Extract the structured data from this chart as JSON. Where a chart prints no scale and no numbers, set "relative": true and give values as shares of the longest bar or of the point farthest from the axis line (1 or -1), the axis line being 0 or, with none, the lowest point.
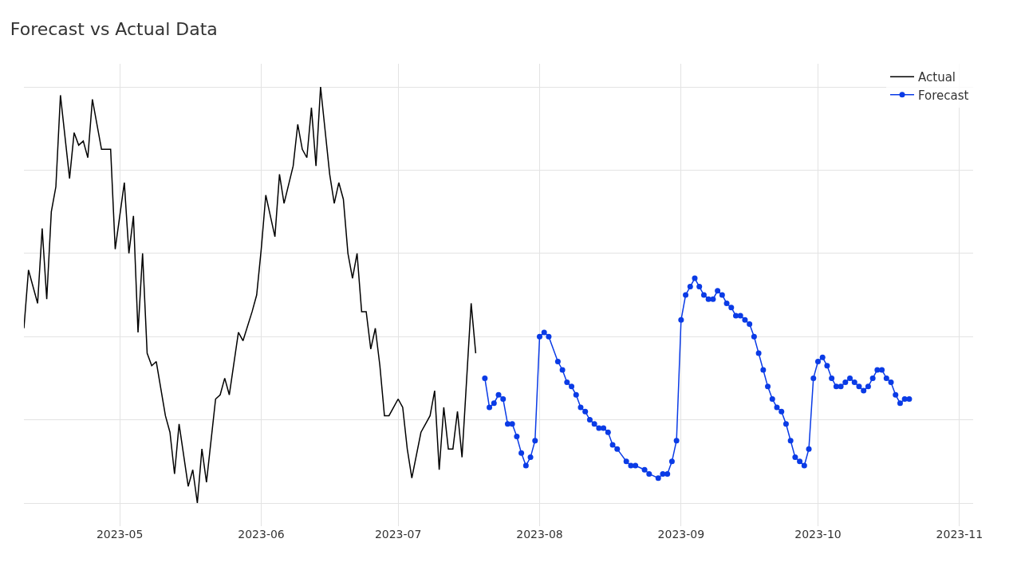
{
  "chart_data": {
    "type": "line",
    "title": "Forecast vs Actual Data",
    "relative": true,
    "grid": true,
    "legend": "top right",
    "xlim": [
      "2023-04-10",
      "2023-11-04"
    ],
    "xticks": [
      "2023-05",
      "2023-06",
      "2023-07",
      "2023-08",
      "2023-09",
      "2023-10",
      "2023-11"
    ],
    "series": [
      {
        "name": "Actual",
        "color": "#000000",
        "marker": "none",
        "x": [
          "2023-04-10",
          "2023-04-11",
          "2023-04-13",
          "2023-04-14",
          "2023-04-15",
          "2023-04-16",
          "2023-04-17",
          "2023-04-18",
          "2023-04-20",
          "2023-04-21",
          "2023-04-22",
          "2023-04-23",
          "2023-04-24",
          "2023-04-25",
          "2023-04-27",
          "2023-04-29",
          "2023-04-30",
          "2023-05-02",
          "2023-05-03",
          "2023-05-04",
          "2023-05-05",
          "2023-05-06",
          "2023-05-07",
          "2023-05-08",
          "2023-05-09",
          "2023-05-11",
          "2023-05-12",
          "2023-05-13",
          "2023-05-14",
          "2023-05-16",
          "2023-05-17",
          "2023-05-18",
          "2023-05-19",
          "2023-05-20",
          "2023-05-22",
          "2023-05-23",
          "2023-05-24",
          "2023-05-25",
          "2023-05-27",
          "2023-05-28",
          "2023-05-30",
          "2023-05-31",
          "2023-06-01",
          "2023-06-02",
          "2023-06-04",
          "2023-06-05",
          "2023-06-06",
          "2023-06-08",
          "2023-06-09",
          "2023-06-10",
          "2023-06-11",
          "2023-06-12",
          "2023-06-13",
          "2023-06-14",
          "2023-06-16",
          "2023-06-17",
          "2023-06-18",
          "2023-06-19",
          "2023-06-20",
          "2023-06-21",
          "2023-06-22",
          "2023-06-23",
          "2023-06-24",
          "2023-06-25",
          "2023-06-26",
          "2023-06-27",
          "2023-06-28",
          "2023-06-29",
          "2023-07-01",
          "2023-07-02",
          "2023-07-03",
          "2023-07-04",
          "2023-07-06",
          "2023-07-07",
          "2023-07-08",
          "2023-07-09",
          "2023-07-10",
          "2023-07-11",
          "2023-07-12",
          "2023-07-13",
          "2023-07-14",
          "2023-07-15",
          "2023-07-17",
          "2023-07-18"
        ],
        "values": [
          0.42,
          0.56,
          0.48,
          0.66,
          0.49,
          0.7,
          0.76,
          0.98,
          0.78,
          0.89,
          0.86,
          0.87,
          0.83,
          0.97,
          0.85,
          0.85,
          0.61,
          0.77,
          0.6,
          0.69,
          0.41,
          0.6,
          0.36,
          0.33,
          0.34,
          0.21,
          0.17,
          0.07,
          0.19,
          0.04,
          0.08,
          0,
          0.13,
          0.05,
          0.25,
          0.26,
          0.3,
          0.26,
          0.41,
          0.39,
          0.46,
          0.5,
          0.61,
          0.74,
          0.64,
          0.79,
          0.72,
          0.81,
          0.91,
          0.85,
          0.83,
          0.95,
          0.81,
          1.0,
          0.79,
          0.72,
          0.77,
          0.73,
          0.6,
          0.54,
          0.6,
          0.46,
          0.46,
          0.37,
          0.42,
          0.33,
          0.21,
          0.21,
          0.25,
          0.23,
          0.13,
          0.06,
          0.17,
          0.19,
          0.21,
          0.27,
          0.08,
          0.23,
          0.13,
          0.13,
          0.22,
          0.11,
          0.48,
          0.36
        ]
      },
      {
        "name": "Forecast",
        "color": "#0a3be6",
        "marker": "circle",
        "x": [
          "2023-07-20",
          "2023-07-21",
          "2023-07-22",
          "2023-07-23",
          "2023-07-24",
          "2023-07-25",
          "2023-07-26",
          "2023-07-27",
          "2023-07-28",
          "2023-07-29",
          "2023-07-30",
          "2023-07-31",
          "2023-08-01",
          "2023-08-02",
          "2023-08-03",
          "2023-08-05",
          "2023-08-06",
          "2023-08-07",
          "2023-08-08",
          "2023-08-09",
          "2023-08-10",
          "2023-08-11",
          "2023-08-12",
          "2023-08-13",
          "2023-08-14",
          "2023-08-15",
          "2023-08-16",
          "2023-08-17",
          "2023-08-18",
          "2023-08-20",
          "2023-08-21",
          "2023-08-22",
          "2023-08-24",
          "2023-08-25",
          "2023-08-27",
          "2023-08-28",
          "2023-08-29",
          "2023-08-30",
          "2023-08-31",
          "2023-09-01",
          "2023-09-02",
          "2023-09-03",
          "2023-09-04",
          "2023-09-05",
          "2023-09-06",
          "2023-09-07",
          "2023-09-08",
          "2023-09-09",
          "2023-09-10",
          "2023-09-11",
          "2023-09-12",
          "2023-09-13",
          "2023-09-14",
          "2023-09-15",
          "2023-09-16",
          "2023-09-17",
          "2023-09-18",
          "2023-09-19",
          "2023-09-20",
          "2023-09-21",
          "2023-09-22",
          "2023-09-23",
          "2023-09-24",
          "2023-09-25",
          "2023-09-26",
          "2023-09-27",
          "2023-09-28",
          "2023-09-29",
          "2023-09-30",
          "2023-10-01",
          "2023-10-02",
          "2023-10-03",
          "2023-10-04",
          "2023-10-05",
          "2023-10-06",
          "2023-10-07",
          "2023-10-08",
          "2023-10-09",
          "2023-10-10",
          "2023-10-11",
          "2023-10-12",
          "2023-10-13",
          "2023-10-14",
          "2023-10-15",
          "2023-10-16",
          "2023-10-17",
          "2023-10-18",
          "2023-10-19",
          "2023-10-20",
          "2023-10-21"
        ],
        "values": [
          0.3,
          0.23,
          0.24,
          0.26,
          0.25,
          0.19,
          0.19,
          0.16,
          0.12,
          0.09,
          0.11,
          0.15,
          0.4,
          0.41,
          0.4,
          0.34,
          0.32,
          0.29,
          0.28,
          0.26,
          0.23,
          0.22,
          0.2,
          0.19,
          0.18,
          0.18,
          0.17,
          0.14,
          0.13,
          0.1,
          0.09,
          0.09,
          0.08,
          0.07,
          0.06,
          0.07,
          0.07,
          0.1,
          0.15,
          0.44,
          0.5,
          0.52,
          0.54,
          0.52,
          0.5,
          0.49,
          0.49,
          0.51,
          0.5,
          0.48,
          0.47,
          0.45,
          0.45,
          0.44,
          0.43,
          0.4,
          0.36,
          0.32,
          0.28,
          0.25,
          0.23,
          0.22,
          0.19,
          0.15,
          0.11,
          0.1,
          0.09,
          0.13,
          0.3,
          0.34,
          0.35,
          0.33,
          0.3,
          0.28,
          0.28,
          0.29,
          0.3,
          0.29,
          0.28,
          0.27,
          0.28,
          0.3,
          0.32,
          0.32,
          0.3,
          0.29,
          0.26,
          0.24,
          0.25,
          0.25
        ]
      }
    ]
  }
}
